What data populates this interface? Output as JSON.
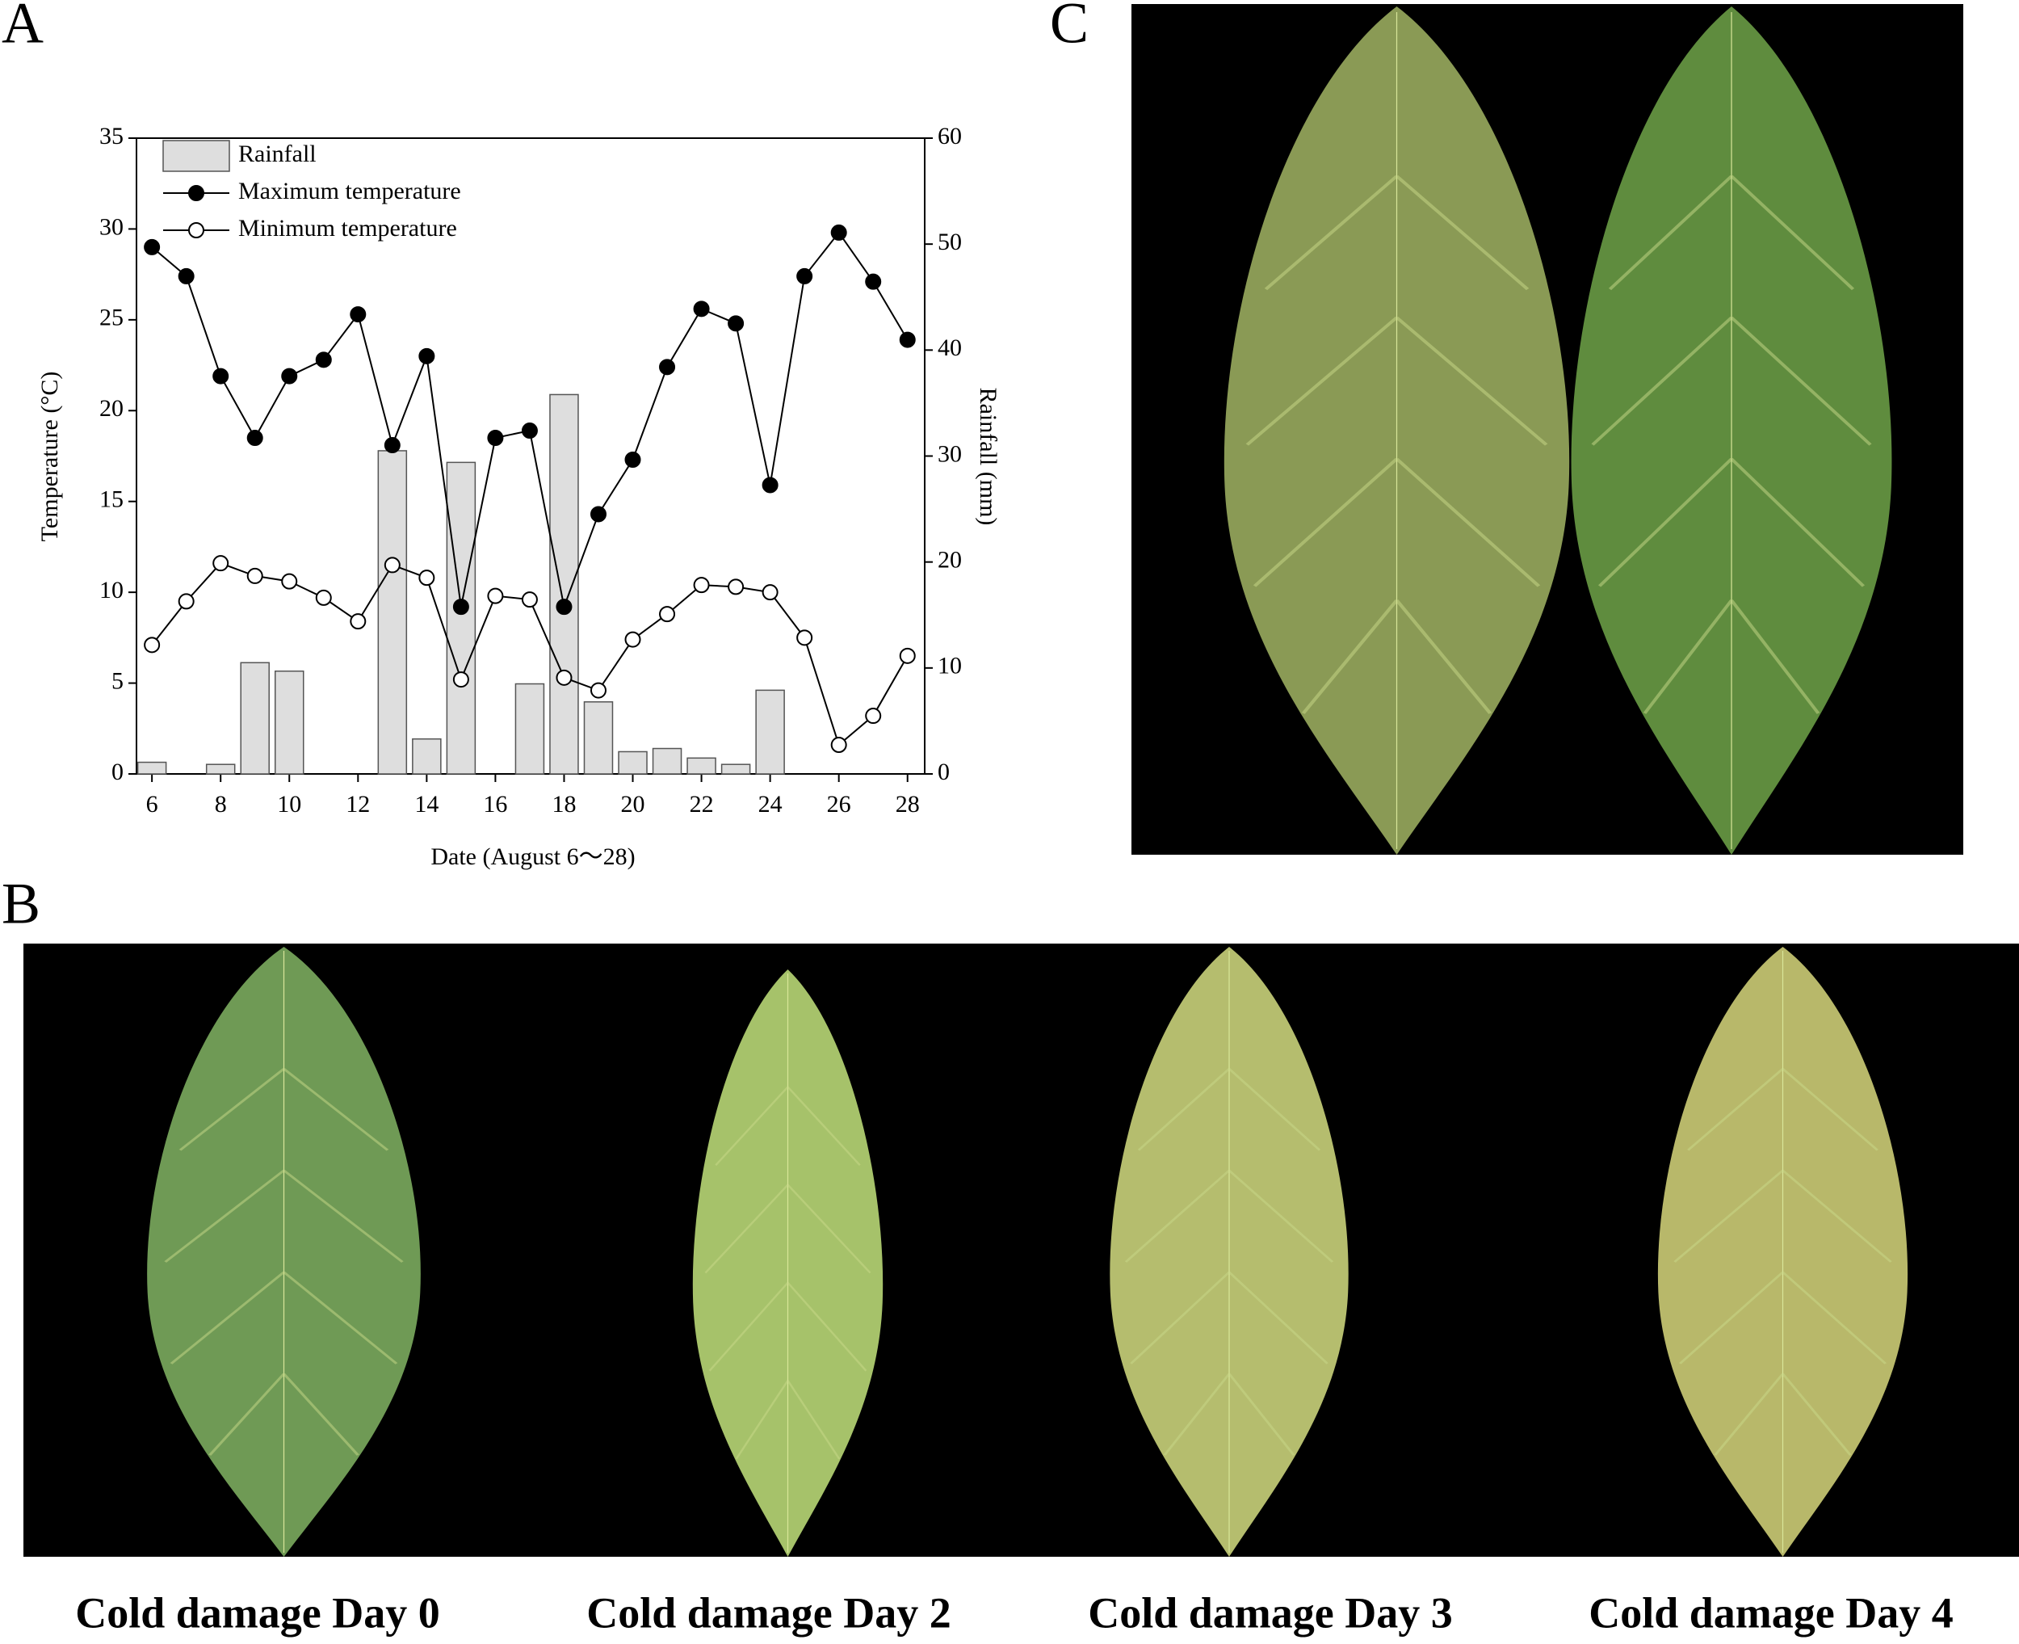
{
  "panel_labels": [
    "A",
    "B",
    "C"
  ],
  "captions": [
    "Cold damage Day 0",
    "Cold damage Day 2",
    "Cold damage Day 3",
    "Cold damage Day 4"
  ],
  "chart_data": {
    "type": "combo",
    "x_label": "Date (August 6～28)",
    "y_label": "Temperature (°C)",
    "y2_label": "Rainfall (mm)",
    "x": [
      6,
      7,
      8,
      9,
      10,
      11,
      12,
      13,
      14,
      15,
      16,
      17,
      18,
      19,
      20,
      21,
      22,
      23,
      24,
      25,
      26,
      27,
      28
    ],
    "xlim": [
      5.55,
      28.5
    ],
    "xticks": [
      6,
      8,
      10,
      12,
      14,
      16,
      18,
      20,
      22,
      24,
      26,
      28
    ],
    "ylim": [
      0,
      35
    ],
    "yticks": [
      0,
      5,
      10,
      15,
      20,
      25,
      30,
      35
    ],
    "y2lim": [
      0,
      60
    ],
    "y2ticks": [
      0,
      10,
      20,
      30,
      40,
      50,
      60
    ],
    "series": [
      {
        "name": "Rainfall",
        "type": "bar",
        "axis": "y2",
        "color": "#dedede",
        "values": [
          1.1,
          0,
          0.9,
          10.5,
          9.7,
          0,
          0,
          30.5,
          3.3,
          29.4,
          0,
          8.5,
          35.8,
          6.8,
          2.1,
          2.4,
          1.5,
          0.9,
          7.9,
          0,
          0,
          0,
          0
        ]
      },
      {
        "name": "Maximum temperature",
        "type": "line",
        "color": "#000000",
        "marker": "filled",
        "values": [
          29.0,
          27.4,
          21.9,
          18.5,
          21.9,
          22.8,
          25.3,
          18.1,
          23.0,
          9.2,
          18.5,
          18.9,
          9.2,
          14.3,
          17.3,
          22.4,
          25.6,
          24.8,
          15.9,
          27.4,
          29.8,
          27.1,
          23.9
        ]
      },
      {
        "name": "Minimum temperature",
        "type": "line",
        "color": "#000000",
        "marker": "open",
        "values": [
          7.1,
          9.5,
          11.6,
          10.9,
          10.6,
          9.7,
          8.4,
          11.5,
          10.8,
          5.2,
          9.8,
          9.6,
          5.3,
          4.6,
          7.4,
          8.8,
          10.4,
          10.3,
          10.0,
          7.5,
          1.6,
          3.2,
          6.5
        ]
      }
    ]
  }
}
